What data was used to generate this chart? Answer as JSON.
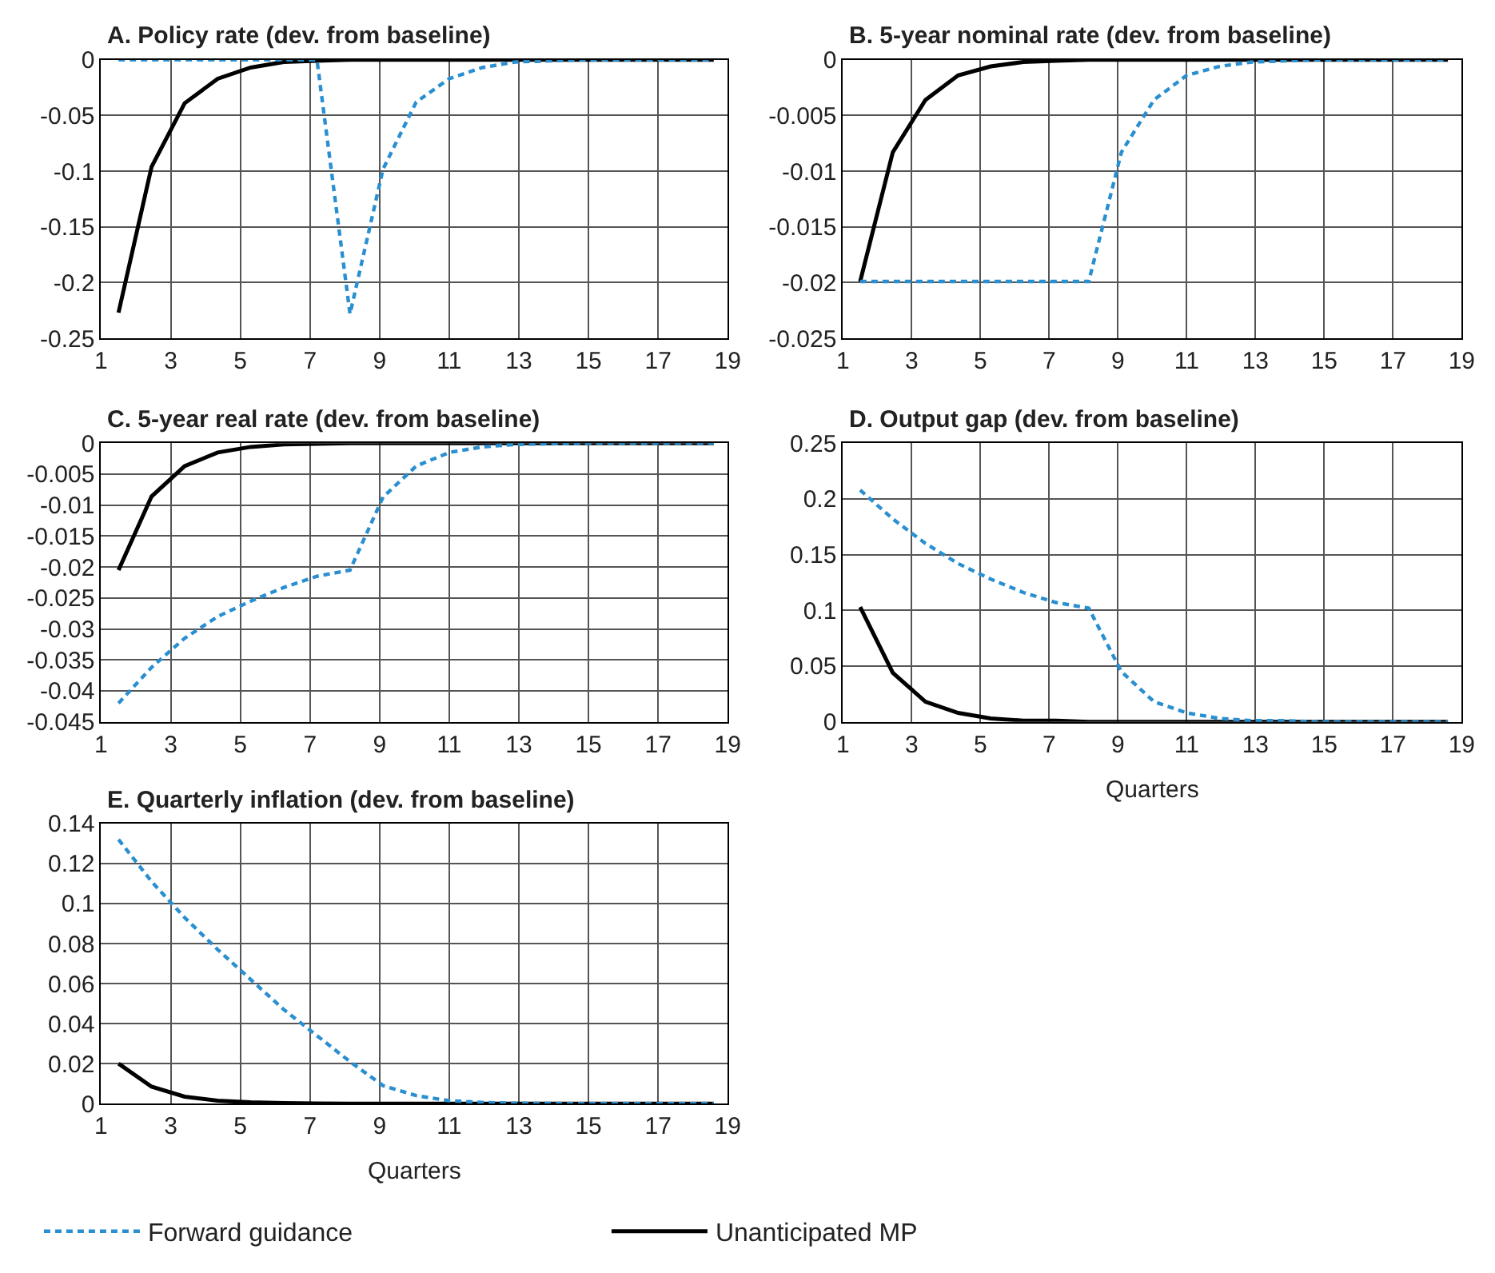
{
  "chart_data": [
    {
      "type": "line",
      "title": "A. Policy rate (dev. from baseline)",
      "xlim": [
        1,
        19
      ],
      "xticks": [
        1,
        3,
        5,
        7,
        9,
        11,
        13,
        15,
        17,
        19
      ],
      "ylim": [
        -0.25,
        0
      ],
      "yticks": [
        -0.25,
        -0.2,
        -0.15,
        -0.1,
        -0.05,
        0
      ],
      "grid": true,
      "legend": "bottom",
      "marker": "none",
      "x": [
        1.5,
        2.45,
        3.4,
        4.35,
        5.3,
        6.25,
        7.2,
        8.15,
        9.1,
        10.05,
        11.0,
        11.95,
        12.9,
        13.85,
        14.8,
        15.75,
        16.7,
        17.65,
        18.6
      ],
      "series": [
        {
          "name": "Forward guidance",
          "color": "#2a8fd0",
          "line_style": "dashed",
          "values": [
            0,
            0,
            0,
            0,
            0,
            0,
            0,
            -0.228,
            -0.098,
            -0.038,
            -0.017,
            -0.007,
            -0.002,
            -0.001,
            0,
            0,
            0,
            0,
            0
          ]
        },
        {
          "name": "Unanticipated MP",
          "color": "#000000",
          "line_style": "solid",
          "values": [
            -0.227,
            -0.096,
            -0.039,
            -0.017,
            -0.007,
            -0.002,
            -0.001,
            0,
            0,
            0,
            0,
            0,
            0,
            0,
            0,
            0,
            0,
            0,
            0
          ]
        }
      ]
    },
    {
      "type": "line",
      "title": "B. 5-year nominal rate (dev. from baseline)",
      "xlim": [
        1,
        19
      ],
      "xticks": [
        1,
        3,
        5,
        7,
        9,
        11,
        13,
        15,
        17,
        19
      ],
      "ylim": [
        -0.025,
        0
      ],
      "yticks": [
        -0.025,
        -0.02,
        -0.015,
        -0.01,
        -0.005,
        0
      ],
      "grid": true,
      "marker": "none",
      "x": [
        1.5,
        2.45,
        3.4,
        4.35,
        5.3,
        6.25,
        7.2,
        8.15,
        9.1,
        10.05,
        11.0,
        11.95,
        12.9,
        13.85,
        14.8,
        15.75,
        16.7,
        17.65,
        18.6
      ],
      "series": [
        {
          "color": "#2a8fd0",
          "line_style": "dashed",
          "values": [
            -0.0199,
            -0.0199,
            -0.0199,
            -0.0199,
            -0.0199,
            -0.0199,
            -0.0199,
            -0.0199,
            -0.0083,
            -0.0036,
            -0.0014,
            -0.0006,
            -0.0002,
            -0.0001,
            0,
            0,
            0,
            0,
            0
          ]
        },
        {
          "color": "#000000",
          "line_style": "solid",
          "values": [
            -0.0199,
            -0.0083,
            -0.0036,
            -0.0014,
            -0.0006,
            -0.0002,
            -0.0001,
            0,
            0,
            0,
            0,
            0,
            0,
            0,
            0,
            0,
            0,
            0,
            0
          ]
        }
      ]
    },
    {
      "type": "line",
      "title": "C. 5-year real rate (dev. from baseline)",
      "xlim": [
        1,
        19
      ],
      "xticks": [
        1,
        3,
        5,
        7,
        9,
        11,
        13,
        15,
        17,
        19
      ],
      "ylim": [
        -0.045,
        0
      ],
      "yticks": [
        -0.045,
        -0.04,
        -0.035,
        -0.03,
        -0.025,
        -0.02,
        -0.015,
        -0.01,
        -0.005,
        0
      ],
      "grid": true,
      "marker": "none",
      "x": [
        1.5,
        2.45,
        3.4,
        4.35,
        5.3,
        6.25,
        7.2,
        8.15,
        9.1,
        10.05,
        11.0,
        11.95,
        12.9,
        13.85,
        14.8,
        15.75,
        16.7,
        17.65,
        18.6
      ],
      "series": [
        {
          "color": "#2a8fd0",
          "line_style": "dashed",
          "values": [
            -0.042,
            -0.0362,
            -0.0315,
            -0.028,
            -0.0255,
            -0.0233,
            -0.0215,
            -0.0205,
            -0.0087,
            -0.0037,
            -0.0015,
            -0.0006,
            -0.0002,
            -0.0001,
            0,
            0,
            0,
            0,
            0
          ]
        },
        {
          "color": "#000000",
          "line_style": "solid",
          "values": [
            -0.0205,
            -0.0086,
            -0.0037,
            -0.0015,
            -0.0006,
            -0.0002,
            -0.0001,
            0,
            0,
            0,
            0,
            0,
            0,
            0,
            0,
            0,
            0,
            0,
            0
          ]
        }
      ]
    },
    {
      "type": "line",
      "title": "D. Output gap (dev. from baseline)",
      "xlabel": "Quarters",
      "xlim": [
        1,
        19
      ],
      "xticks": [
        1,
        3,
        5,
        7,
        9,
        11,
        13,
        15,
        17,
        19
      ],
      "ylim": [
        0,
        0.25
      ],
      "yticks": [
        0,
        0.05,
        0.1,
        0.15,
        0.2,
        0.25
      ],
      "grid": true,
      "marker": "none",
      "x": [
        1.5,
        2.45,
        3.4,
        4.35,
        5.3,
        6.25,
        7.2,
        8.15,
        9.1,
        10.05,
        11.0,
        11.95,
        12.9,
        13.85,
        14.8,
        15.75,
        16.7,
        17.65,
        18.6
      ],
      "series": [
        {
          "color": "#2a8fd0",
          "line_style": "dashed",
          "values": [
            0.208,
            0.182,
            0.16,
            0.142,
            0.128,
            0.116,
            0.107,
            0.102,
            0.045,
            0.018,
            0.008,
            0.003,
            0.001,
            0.001,
            0,
            0,
            0,
            0,
            0
          ]
        },
        {
          "color": "#000000",
          "line_style": "solid",
          "values": [
            0.103,
            0.044,
            0.018,
            0.008,
            0.003,
            0.001,
            0.001,
            0,
            0,
            0,
            0,
            0,
            0,
            0,
            0,
            0,
            0,
            0,
            0
          ]
        }
      ]
    },
    {
      "type": "line",
      "title": "E. Quarterly inflation (dev. from baseline)",
      "xlabel": "Quarters",
      "xlim": [
        1,
        19
      ],
      "xticks": [
        1,
        3,
        5,
        7,
        9,
        11,
        13,
        15,
        17,
        19
      ],
      "ylim": [
        0,
        0.14
      ],
      "yticks": [
        0,
        0.02,
        0.04,
        0.06,
        0.08,
        0.1,
        0.12,
        0.14
      ],
      "grid": true,
      "marker": "none",
      "x": [
        1.5,
        2.45,
        3.4,
        4.35,
        5.3,
        6.25,
        7.2,
        8.15,
        9.1,
        10.05,
        11.0,
        11.95,
        12.9,
        13.85,
        14.8,
        15.75,
        16.7,
        17.65,
        18.6
      ],
      "series": [
        {
          "color": "#2a8fd0",
          "line_style": "dashed",
          "values": [
            0.132,
            0.111,
            0.093,
            0.077,
            0.062,
            0.047,
            0.034,
            0.021,
            0.009,
            0.004,
            0.0015,
            0.0006,
            0.0002,
            0.0001,
            0,
            0,
            0,
            0,
            0
          ]
        },
        {
          "color": "#000000",
          "line_style": "solid",
          "values": [
            0.02,
            0.0085,
            0.0035,
            0.0015,
            0.0007,
            0.0003,
            0.0001,
            0,
            0,
            0,
            0,
            0,
            0,
            0,
            0,
            0,
            0,
            0,
            0
          ]
        }
      ]
    }
  ]
}
